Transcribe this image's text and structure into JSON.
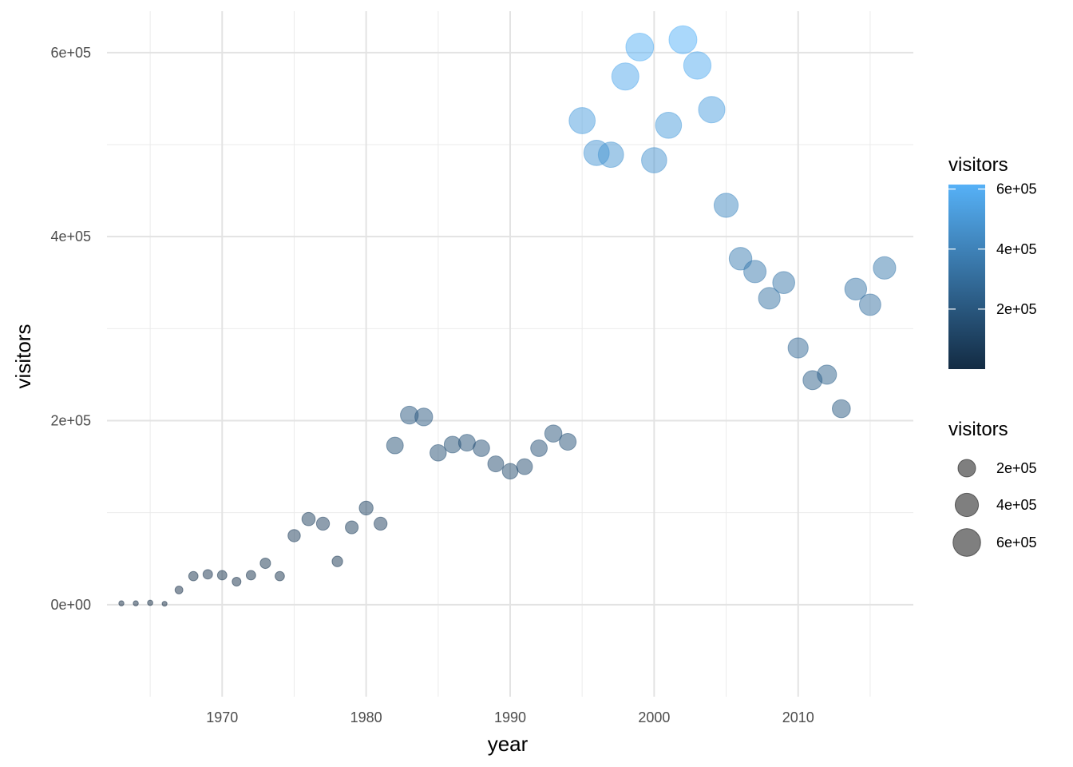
{
  "chart_data": {
    "type": "scatter",
    "title": "",
    "xlabel": "year",
    "ylabel": "visitors",
    "xlim": [
      1962,
      2018
    ],
    "ylim": [
      -100000,
      645000
    ],
    "x_ticks": [
      1970,
      1980,
      1990,
      2000,
      2010
    ],
    "x_tick_labels": [
      "1970",
      "1980",
      "1990",
      "2000",
      "2010"
    ],
    "y_ticks": [
      0,
      200000,
      400000,
      600000
    ],
    "y_tick_labels": [
      "0e+00",
      "2e+05",
      "4e+05",
      "6e+05"
    ],
    "grid": true,
    "legend_position": "right",
    "color_legend": {
      "title": "visitors",
      "low_color": "#132B43",
      "high_color": "#56B1F7",
      "range": [
        0,
        615000
      ],
      "breaks": [
        200000,
        400000,
        600000
      ],
      "labels": [
        "2e+05",
        "4e+05",
        "6e+05"
      ]
    },
    "size_legend": {
      "title": "visitors",
      "breaks": [
        200000,
        400000,
        600000
      ],
      "labels": [
        "2e+05",
        "4e+05",
        "6e+05"
      ]
    },
    "point_alpha": 0.5,
    "series": [
      {
        "x": [
          1963,
          1964,
          1965,
          1966,
          1967,
          1968,
          1969,
          1970,
          1971,
          1972,
          1973,
          1974,
          1975,
          1976,
          1977,
          1978,
          1979,
          1980,
          1981,
          1982,
          1983,
          1984,
          1985,
          1986,
          1987,
          1988,
          1989,
          1990,
          1991,
          1992,
          1993,
          1994,
          1995,
          1996,
          1997,
          1998,
          1999,
          2000,
          2001,
          2002,
          2003,
          2004,
          2005,
          2006,
          2007,
          2008,
          2009,
          2010,
          2011,
          2012,
          2013,
          2014,
          2015,
          2016
        ],
        "y": [
          1500,
          1500,
          2000,
          1000,
          16000,
          31000,
          33000,
          32000,
          25000,
          32000,
          45000,
          31000,
          75000,
          93000,
          88000,
          47000,
          84000,
          105000,
          88000,
          173000,
          206000,
          204000,
          165000,
          174000,
          176000,
          170000,
          153000,
          145000,
          150000,
          170000,
          186000,
          177000,
          526000,
          491000,
          489000,
          574000,
          606000,
          483000,
          521000,
          614000,
          586000,
          538000,
          434000,
          376000,
          362000,
          333000,
          350000,
          279000,
          244000,
          250000,
          213000,
          343000,
          326000,
          366000
        ]
      }
    ]
  }
}
